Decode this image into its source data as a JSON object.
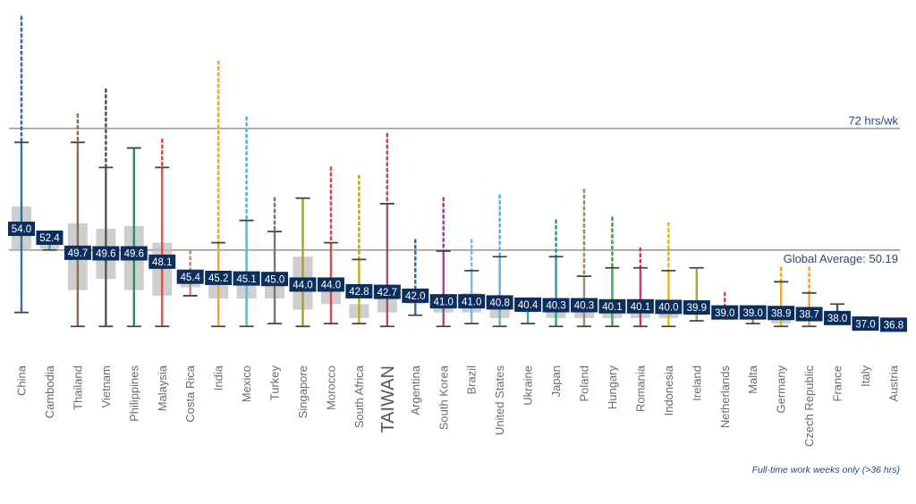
{
  "chart_data": {
    "type": "box",
    "title": "",
    "xlabel": "",
    "ylabel": "",
    "units": "hours per week",
    "ylim": [
      36,
      92
    ],
    "grid": false,
    "footnote": "Full-time work weeks only (>36 hrs)",
    "reference_lines": [
      {
        "name": "72-hour-line",
        "value": 72,
        "label": "72 hrs/wk"
      },
      {
        "name": "global-average-line",
        "value": 50.19,
        "label": "Global Average: 50.19"
      }
    ],
    "label_style": {
      "box_fill": "#0b2e5c",
      "label_text": "#ffffff",
      "box_shade": "#bdbdbd",
      "whisker": "#444444"
    },
    "categories": [
      "China",
      "Cambodia",
      "Thailand",
      "Vietnam",
      "Philippines",
      "Malaysia",
      "Costa Rica",
      "India",
      "Mexico",
      "Turkey",
      "Singapore",
      "Morocco",
      "South Africa",
      "TAIWAN",
      "Argentina",
      "South Korea",
      "Brazil",
      "United States",
      "Ukraine",
      "Japan",
      "Poland",
      "Hungary",
      "Romania",
      "Indonesia",
      "Ireland",
      "Netherlands",
      "Malta",
      "Germany",
      "Czech Republic",
      "France",
      "Italy",
      "Austria"
    ],
    "highlight_category": "TAIWAN",
    "series": [
      {
        "name": "China",
        "color": "#3c6aa8",
        "mean": 54.0,
        "whisker_low": 39,
        "q1": 50.2,
        "q3": 58.0,
        "whisker_high": 69.5,
        "outlier_max": 92
      },
      {
        "name": "Cambodia",
        "color": "#4aa3b5",
        "mean": 52.4,
        "whisker_low": 50.2,
        "q1": 50.4,
        "q3": 51.5,
        "whisker_high": 51.5,
        "outlier_max": 51.5
      },
      {
        "name": "Thailand",
        "color": "#8c6a5a",
        "mean": 49.7,
        "whisker_low": 36.5,
        "q1": 43.0,
        "q3": 55.0,
        "whisker_high": 69.5,
        "outlier_max": 74.5
      },
      {
        "name": "Vietnam",
        "color": "#555555",
        "mean": 49.6,
        "whisker_low": 36.5,
        "q1": 45.0,
        "q3": 54.0,
        "whisker_high": 65.0,
        "outlier_max": 79.0
      },
      {
        "name": "Philippines",
        "color": "#2e8b5a",
        "mean": 49.6,
        "whisker_low": 36.5,
        "q1": 43.0,
        "q3": 54.5,
        "whisker_high": 68.5,
        "outlier_max": 68.5
      },
      {
        "name": "Malaysia",
        "color": "#d9534f",
        "mean": 48.1,
        "whisker_low": 36.5,
        "q1": 42.0,
        "q3": 51.5,
        "whisker_high": 65.0,
        "outlier_max": 70.0
      },
      {
        "name": "Costa Rica",
        "color": "#c8896a",
        "mean": 45.4,
        "whisker_low": 42.0,
        "q1": 43.5,
        "q3": 46.5,
        "whisker_high": 46.5,
        "outlier_max": 50.0
      },
      {
        "name": "India",
        "color": "#f5a623",
        "mean": 45.2,
        "whisker_low": 36.5,
        "q1": 41.5,
        "q3": 46.0,
        "whisker_high": 51.5,
        "outlier_max": 84.0
      },
      {
        "name": "Mexico",
        "color": "#5bb7c9",
        "mean": 45.1,
        "whisker_low": 36.5,
        "q1": 41.5,
        "q3": 46.0,
        "whisker_high": 55.5,
        "outlier_max": 74.0
      },
      {
        "name": "Turkey",
        "color": "#777777",
        "mean": 45.0,
        "whisker_low": 37.0,
        "q1": 41.5,
        "q3": 46.0,
        "whisker_high": 53.5,
        "outlier_max": 59.5
      },
      {
        "name": "Singapore",
        "color": "#a8a020",
        "mean": 44.0,
        "whisker_low": 36.5,
        "q1": 39.5,
        "q3": 49.0,
        "whisker_high": 59.5,
        "outlier_max": 59.5
      },
      {
        "name": "Morocco",
        "color": "#e0474c",
        "mean": 44.0,
        "whisker_low": 37.0,
        "q1": 40.5,
        "q3": 45.0,
        "whisker_high": 51.5,
        "outlier_max": 65.0
      },
      {
        "name": "South Africa",
        "color": "#b5b020",
        "mean": 42.8,
        "whisker_low": 37.0,
        "q1": 38.0,
        "q3": 40.5,
        "whisker_high": 48.5,
        "outlier_max": 63.5
      },
      {
        "name": "TAIWAN",
        "color": "#b04a78",
        "mean": 42.7,
        "whisker_low": 36.5,
        "q1": 39.0,
        "q3": 42.0,
        "whisker_high": 58.5,
        "outlier_max": 71.0
      },
      {
        "name": "Argentina",
        "color": "#3c6aa8",
        "mean": 42.0,
        "whisker_low": 38.5,
        "q1": 40.5,
        "q3": 42.0,
        "whisker_high": 41.0,
        "outlier_max": 52.0
      },
      {
        "name": "South Korea",
        "color": "#9a4a8a",
        "mean": 41.0,
        "whisker_low": 36.5,
        "q1": 39.0,
        "q3": 40.5,
        "whisker_high": 50.0,
        "outlier_max": 59.5
      },
      {
        "name": "Brazil",
        "color": "#7fb8e0",
        "mean": 41.0,
        "whisker_low": 37.0,
        "q1": 39.0,
        "q3": 42.5,
        "whisker_high": 46.5,
        "outlier_max": 52.0
      },
      {
        "name": "United States",
        "color": "#6aaee0",
        "mean": 40.8,
        "whisker_low": 36.5,
        "q1": 38.0,
        "q3": 41.5,
        "whisker_high": 49.0,
        "outlier_max": 60.0
      },
      {
        "name": "Ukraine",
        "color": "#4aa3b5",
        "mean": 40.4,
        "whisker_low": 37.0,
        "q1": 39.0,
        "q3": 39.5,
        "whisker_high": 39.5,
        "outlier_max": 39.5
      },
      {
        "name": "Japan",
        "color": "#3a9a8a",
        "mean": 40.3,
        "whisker_low": 36.5,
        "q1": 38.0,
        "q3": 40.0,
        "whisker_high": 49.0,
        "outlier_max": 55.5
      },
      {
        "name": "Poland",
        "color": "#a08a7a",
        "mean": 40.3,
        "whisker_low": 36.5,
        "q1": 38.0,
        "q3": 40.0,
        "whisker_high": 45.5,
        "outlier_max": 61.0
      },
      {
        "name": "Hungary",
        "color": "#3aaa3a",
        "mean": 40.1,
        "whisker_low": 36.5,
        "q1": 38.0,
        "q3": 40.0,
        "whisker_high": 47.0,
        "outlier_max": 56.0
      },
      {
        "name": "Romania",
        "color": "#c83a6a",
        "mean": 40.1,
        "whisker_low": 36.5,
        "q1": 38.0,
        "q3": 40.0,
        "whisker_high": 47.0,
        "outlier_max": 50.5
      },
      {
        "name": "Indonesia",
        "color": "#f0b020",
        "mean": 40.0,
        "whisker_low": 36.5,
        "q1": 38.0,
        "q3": 40.0,
        "whisker_high": 46.5,
        "outlier_max": 55.0
      },
      {
        "name": "Ireland",
        "color": "#b5a040",
        "mean": 39.9,
        "whisker_low": 37.5,
        "q1": 38.5,
        "q3": 40.5,
        "whisker_high": 47.0,
        "outlier_max": 47.0
      },
      {
        "name": "Netherlands",
        "color": "#e0474c",
        "mean": 39.0,
        "whisker_low": 38.0,
        "q1": 38.5,
        "q3": 39.0,
        "whisker_high": 39.0,
        "outlier_max": 42.5
      },
      {
        "name": "Malta",
        "color": "#888888",
        "mean": 39.0,
        "whisker_low": 37.0,
        "q1": 38.0,
        "q3": 39.0,
        "whisker_high": 39.0,
        "outlier_max": 39.0
      },
      {
        "name": "Germany",
        "color": "#f5a623",
        "mean": 38.9,
        "whisker_low": 36.5,
        "q1": 37.0,
        "q3": 40.0,
        "whisker_high": 44.5,
        "outlier_max": 47.0
      },
      {
        "name": "Czech Republic",
        "color": "#f5a623",
        "mean": 38.7,
        "whisker_low": 36.5,
        "q1": 37.5,
        "q3": 39.5,
        "whisker_high": 42.5,
        "outlier_max": 47.0
      },
      {
        "name": "France",
        "color": "#555555",
        "mean": 38.0,
        "whisker_low": 37.0,
        "q1": 37.5,
        "q3": 38.5,
        "whisker_high": 40.5,
        "outlier_max": 40.5
      },
      {
        "name": "Italy",
        "color": "#4aa3b5",
        "mean": 37.0,
        "whisker_low": 36.8,
        "q1": 37.0,
        "q3": 37.5,
        "whisker_high": 37.5,
        "outlier_max": 37.5
      },
      {
        "name": "Austria",
        "color": "#3c6aa8",
        "mean": 36.8,
        "whisker_low": 36.8,
        "q1": 37.0,
        "q3": 37.5,
        "whisker_high": 37.5,
        "outlier_max": 37.5
      }
    ]
  }
}
